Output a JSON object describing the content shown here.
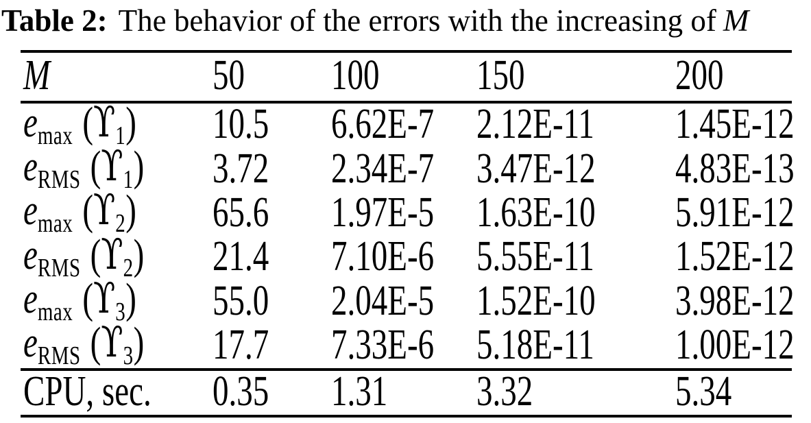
{
  "title": {
    "label": "Table 2:",
    "text": "The behavior of the errors with the increasing of",
    "variable": "M"
  },
  "table": {
    "header": {
      "variable": "M",
      "columns": [
        "50",
        "100",
        "150",
        "200"
      ]
    },
    "rows": [
      {
        "label": {
          "base": "e",
          "sub": "max",
          "open": "(",
          "sym": "ϒ",
          "sym_sub": "1",
          "close": ")"
        },
        "values": [
          "10.5",
          "6.62E-7",
          "2.12E-11",
          "1.45E-12"
        ]
      },
      {
        "label": {
          "base": "e",
          "sub": "RMS",
          "open": "(",
          "sym": "ϒ",
          "sym_sub": "1",
          "close": ")"
        },
        "values": [
          "3.72",
          "2.34E-7",
          "3.47E-12",
          "4.83E-13"
        ]
      },
      {
        "label": {
          "base": "e",
          "sub": "max",
          "open": "(",
          "sym": "ϒ",
          "sym_sub": "2",
          "close": ")"
        },
        "values": [
          "65.6",
          "1.97E-5",
          "1.63E-10",
          "5.91E-12"
        ]
      },
      {
        "label": {
          "base": "e",
          "sub": "RMS",
          "open": "(",
          "sym": "ϒ",
          "sym_sub": "2",
          "close": ")"
        },
        "values": [
          "21.4",
          "7.10E-6",
          "5.55E-11",
          "1.52E-12"
        ]
      },
      {
        "label": {
          "base": "e",
          "sub": "max",
          "open": "(",
          "sym": "ϒ",
          "sym_sub": "3",
          "close": ")"
        },
        "values": [
          "55.0",
          "2.04E-5",
          "1.52E-10",
          "3.98E-12"
        ]
      },
      {
        "label": {
          "base": "e",
          "sub": "RMS",
          "open": "(",
          "sym": "ϒ",
          "sym_sub": "3",
          "close": ")"
        },
        "values": [
          "17.7",
          "7.33E-6",
          "5.18E-11",
          "1.00E-12"
        ]
      }
    ],
    "footer": {
      "label": "CPU, sec.",
      "values": [
        "0.35",
        "1.31",
        "3.32",
        "5.34"
      ]
    }
  },
  "colors": {
    "text": "#000000",
    "background": "#ffffff",
    "rule": "#000000"
  }
}
